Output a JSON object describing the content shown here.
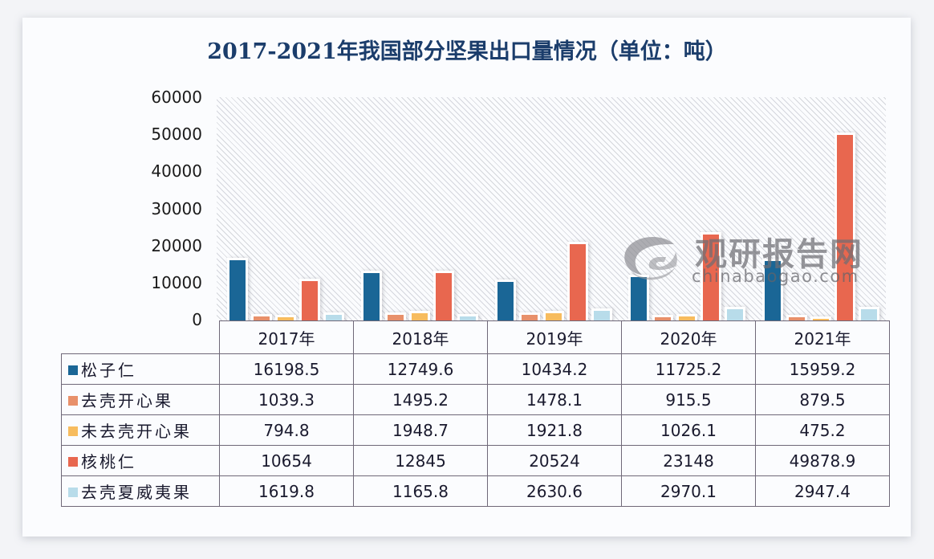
{
  "title": "2017-2021年我国部分坚果出口量情况（单位：吨）",
  "yaxis": {
    "ticks": [
      "60000",
      "50000",
      "40000",
      "30000",
      "20000",
      "10000",
      "0"
    ],
    "max": 60000
  },
  "years": [
    "2017年",
    "2018年",
    "2019年",
    "2020年",
    "2021年"
  ],
  "series": [
    {
      "name": "松子仁",
      "color": "#1a6696",
      "values": [
        "16198.5",
        "12749.6",
        "10434.2",
        "11725.2",
        "15959.2"
      ]
    },
    {
      "name": "去壳开心果",
      "color": "#e8906a",
      "values": [
        "1039.3",
        "1495.2",
        "1478.1",
        "915.5",
        "879.5"
      ]
    },
    {
      "name": "未去壳开心果",
      "color": "#f7bc5e",
      "values": [
        "794.8",
        "1948.7",
        "1921.8",
        "1026.1",
        "475.2"
      ]
    },
    {
      "name": "核桃仁",
      "color": "#e8674f",
      "values": [
        "10654",
        "12845",
        "20524",
        "23148",
        "49878.9"
      ]
    },
    {
      "name": "去壳夏威夷果",
      "color": "#b8dcea",
      "values": [
        "1619.8",
        "1165.8",
        "2630.6",
        "2970.1",
        "2947.4"
      ]
    }
  ],
  "watermark": {
    "cn": "观研报告网",
    "en": "chinabaogao.com"
  },
  "chart_data": {
    "type": "bar",
    "title": "2017-2021年我国部分坚果出口量情况（单位：吨）",
    "xlabel": "",
    "ylabel": "吨",
    "ylim": [
      0,
      60000
    ],
    "yticks": [
      0,
      10000,
      20000,
      30000,
      40000,
      50000,
      60000
    ],
    "grid": false,
    "legend_position": "table-left",
    "categories": [
      "2017年",
      "2018年",
      "2019年",
      "2020年",
      "2021年"
    ],
    "series": [
      {
        "name": "松子仁",
        "values": [
          16198.5,
          12749.6,
          10434.2,
          11725.2,
          15959.2
        ]
      },
      {
        "name": "去壳开心果",
        "values": [
          1039.3,
          1495.2,
          1478.1,
          915.5,
          879.5
        ]
      },
      {
        "name": "未去壳开心果",
        "values": [
          794.8,
          1948.7,
          1921.8,
          1026.1,
          475.2
        ]
      },
      {
        "name": "核桃仁",
        "values": [
          10654,
          12845,
          20524,
          23148,
          49878.9
        ]
      },
      {
        "name": "去壳夏威夷果",
        "values": [
          1619.8,
          1165.8,
          2630.6,
          2970.1,
          2947.4
        ]
      }
    ]
  }
}
